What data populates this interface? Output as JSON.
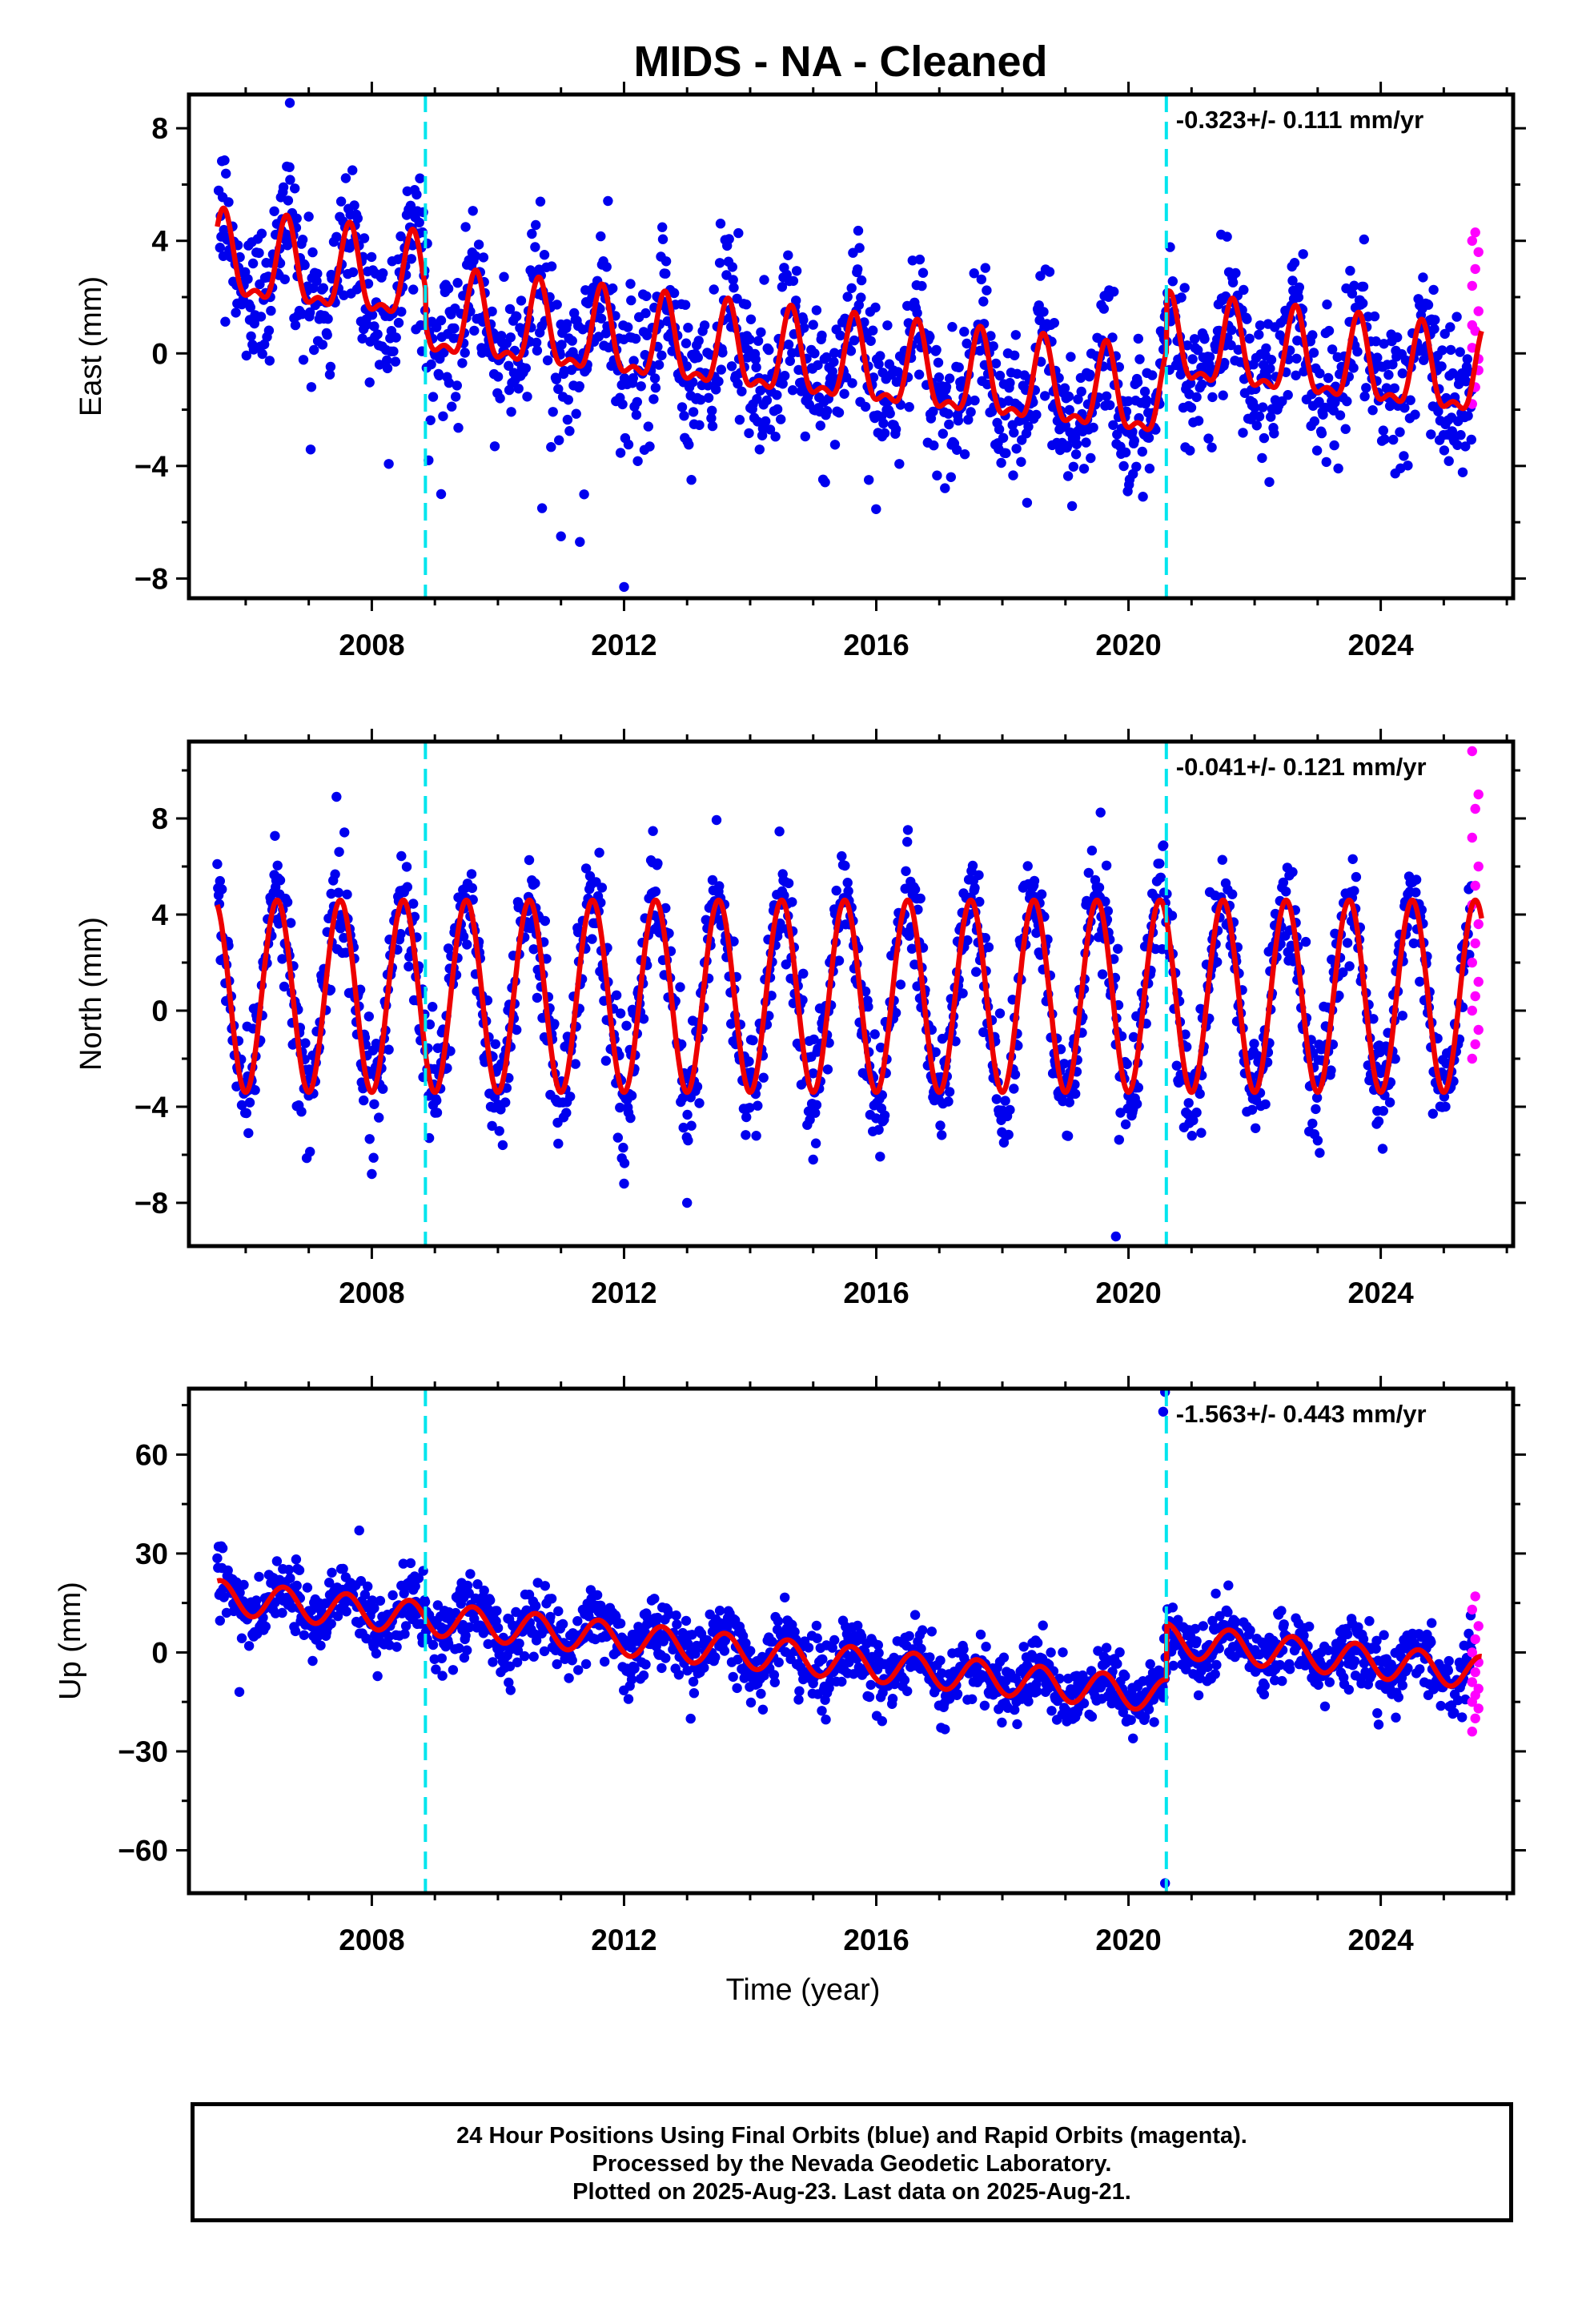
{
  "title": "MIDS  - NA - Cleaned",
  "colors": {
    "final_points": "#0000ee",
    "rapid_points": "#ff00ff",
    "model_line": "#ee0000",
    "event_lines": "#00e5ee",
    "frame": "#000000"
  },
  "footer": {
    "line1": "24 Hour Positions Using Final Orbits (blue) and Rapid Orbits (magenta).",
    "line2": "Processed by the Nevada Geodetic Laboratory.",
    "line3": "Plotted on 2025-Aug-23. Last data on 2025-Aug-21."
  },
  "chart_data": [
    {
      "type": "scatter",
      "component": "East",
      "ylabel": "East (mm)",
      "xlabel": "",
      "xlim": [
        2005.1,
        2026.1
      ],
      "ylim": [
        -8.7,
        9.2
      ],
      "xticks": [
        2008,
        2012,
        2016,
        2020,
        2024
      ],
      "yticks": [
        -8,
        -4,
        0,
        4,
        8
      ],
      "rate_text": "-0.323+/- 0.111 mm/yr",
      "velocity_mm_per_yr": -0.323,
      "velocity_sigma": 0.111,
      "event_lines": [
        2008.85,
        2020.6
      ],
      "model": {
        "intercept_at_2005": 3.2,
        "slope": -0.25,
        "annual_amp": 1.4,
        "annual_phase_peak": 0.65,
        "semi_amp": 0.6,
        "offsets": [
          {
            "t": 2008.85,
            "dy": -1.2
          },
          {
            "t": 2020.6,
            "dy": 2.0
          }
        ]
      },
      "scatter_sigma": 1.3,
      "rapid_values": [
        -1.8,
        -1.2,
        -0.6,
        0.2,
        0.8,
        1.5,
        2.4,
        3.0,
        3.6,
        4.0,
        4.3,
        -0.2,
        1.0
      ],
      "outliers": [
        [
          2006.7,
          8.9
        ],
        [
          2011.0,
          -6.5
        ],
        [
          2011.3,
          -6.7
        ],
        [
          2012.0,
          -8.3
        ],
        [
          2010.7,
          -5.5
        ],
        [
          2009.1,
          -5.0
        ],
        [
          2008.9,
          -3.8
        ]
      ]
    },
    {
      "type": "scatter",
      "component": "North",
      "ylabel": "North (mm)",
      "xlabel": "",
      "xlim": [
        2005.1,
        2026.1
      ],
      "ylim": [
        -9.8,
        11.2
      ],
      "xticks": [
        2008,
        2012,
        2016,
        2020,
        2024
      ],
      "yticks": [
        -8,
        -4,
        0,
        4,
        8
      ],
      "rate_text": "-0.041+/- 0.121 mm/yr",
      "velocity_mm_per_yr": -0.041,
      "velocity_sigma": 0.121,
      "event_lines": [
        2008.85,
        2020.6
      ],
      "model": {
        "intercept_at_2005": 0.6,
        "slope": 0.0,
        "annual_amp": 4.0,
        "annual_phase_peak": 0.5,
        "semi_amp": 0.0,
        "offsets": []
      },
      "scatter_sigma": 1.2,
      "rapid_values": [
        -2.0,
        -1.4,
        -0.8,
        0.0,
        0.6,
        1.2,
        2.0,
        2.8,
        3.6,
        4.4,
        5.2,
        6.0,
        7.2,
        8.4,
        9.0,
        10.8
      ],
      "outliers": [
        [
          2019.8,
          -9.4
        ],
        [
          2012.0,
          -7.2
        ],
        [
          2013.0,
          -8.0
        ],
        [
          2008.0,
          -6.8
        ],
        [
          2015.0,
          -6.2
        ]
      ]
    },
    {
      "type": "scatter",
      "component": "Up",
      "ylabel": "Up (mm)",
      "xlabel": "Time (year)",
      "xlim": [
        2005.1,
        2026.1
      ],
      "ylim": [
        -73,
        80
      ],
      "xticks": [
        2008,
        2012,
        2016,
        2020,
        2024
      ],
      "yticks": [
        -60,
        -30,
        0,
        30,
        60
      ],
      "rate_text": "-1.563+/- 0.443 mm/yr",
      "velocity_mm_per_yr": -1.563,
      "velocity_sigma": 0.443,
      "event_lines": [
        2008.85,
        2020.6
      ],
      "model": {
        "intercept_at_2005": 17.0,
        "slope": -2.0,
        "annual_amp": 5.0,
        "annual_phase_peak": 0.6,
        "semi_amp": 0.0,
        "offsets": [
          {
            "t": 2020.6,
            "dy": 17.0
          }
        ]
      },
      "scatter_sigma": 5.0,
      "rapid_values": [
        -24,
        -20,
        -17,
        -15,
        -13,
        -11,
        -9,
        -6,
        -3,
        0,
        4,
        8,
        13,
        17
      ],
      "outliers": [
        [
          2020.58,
          79
        ],
        [
          2020.55,
          73
        ],
        [
          2020.58,
          -70
        ],
        [
          2005.9,
          -12
        ],
        [
          2007.8,
          37
        ]
      ]
    }
  ]
}
